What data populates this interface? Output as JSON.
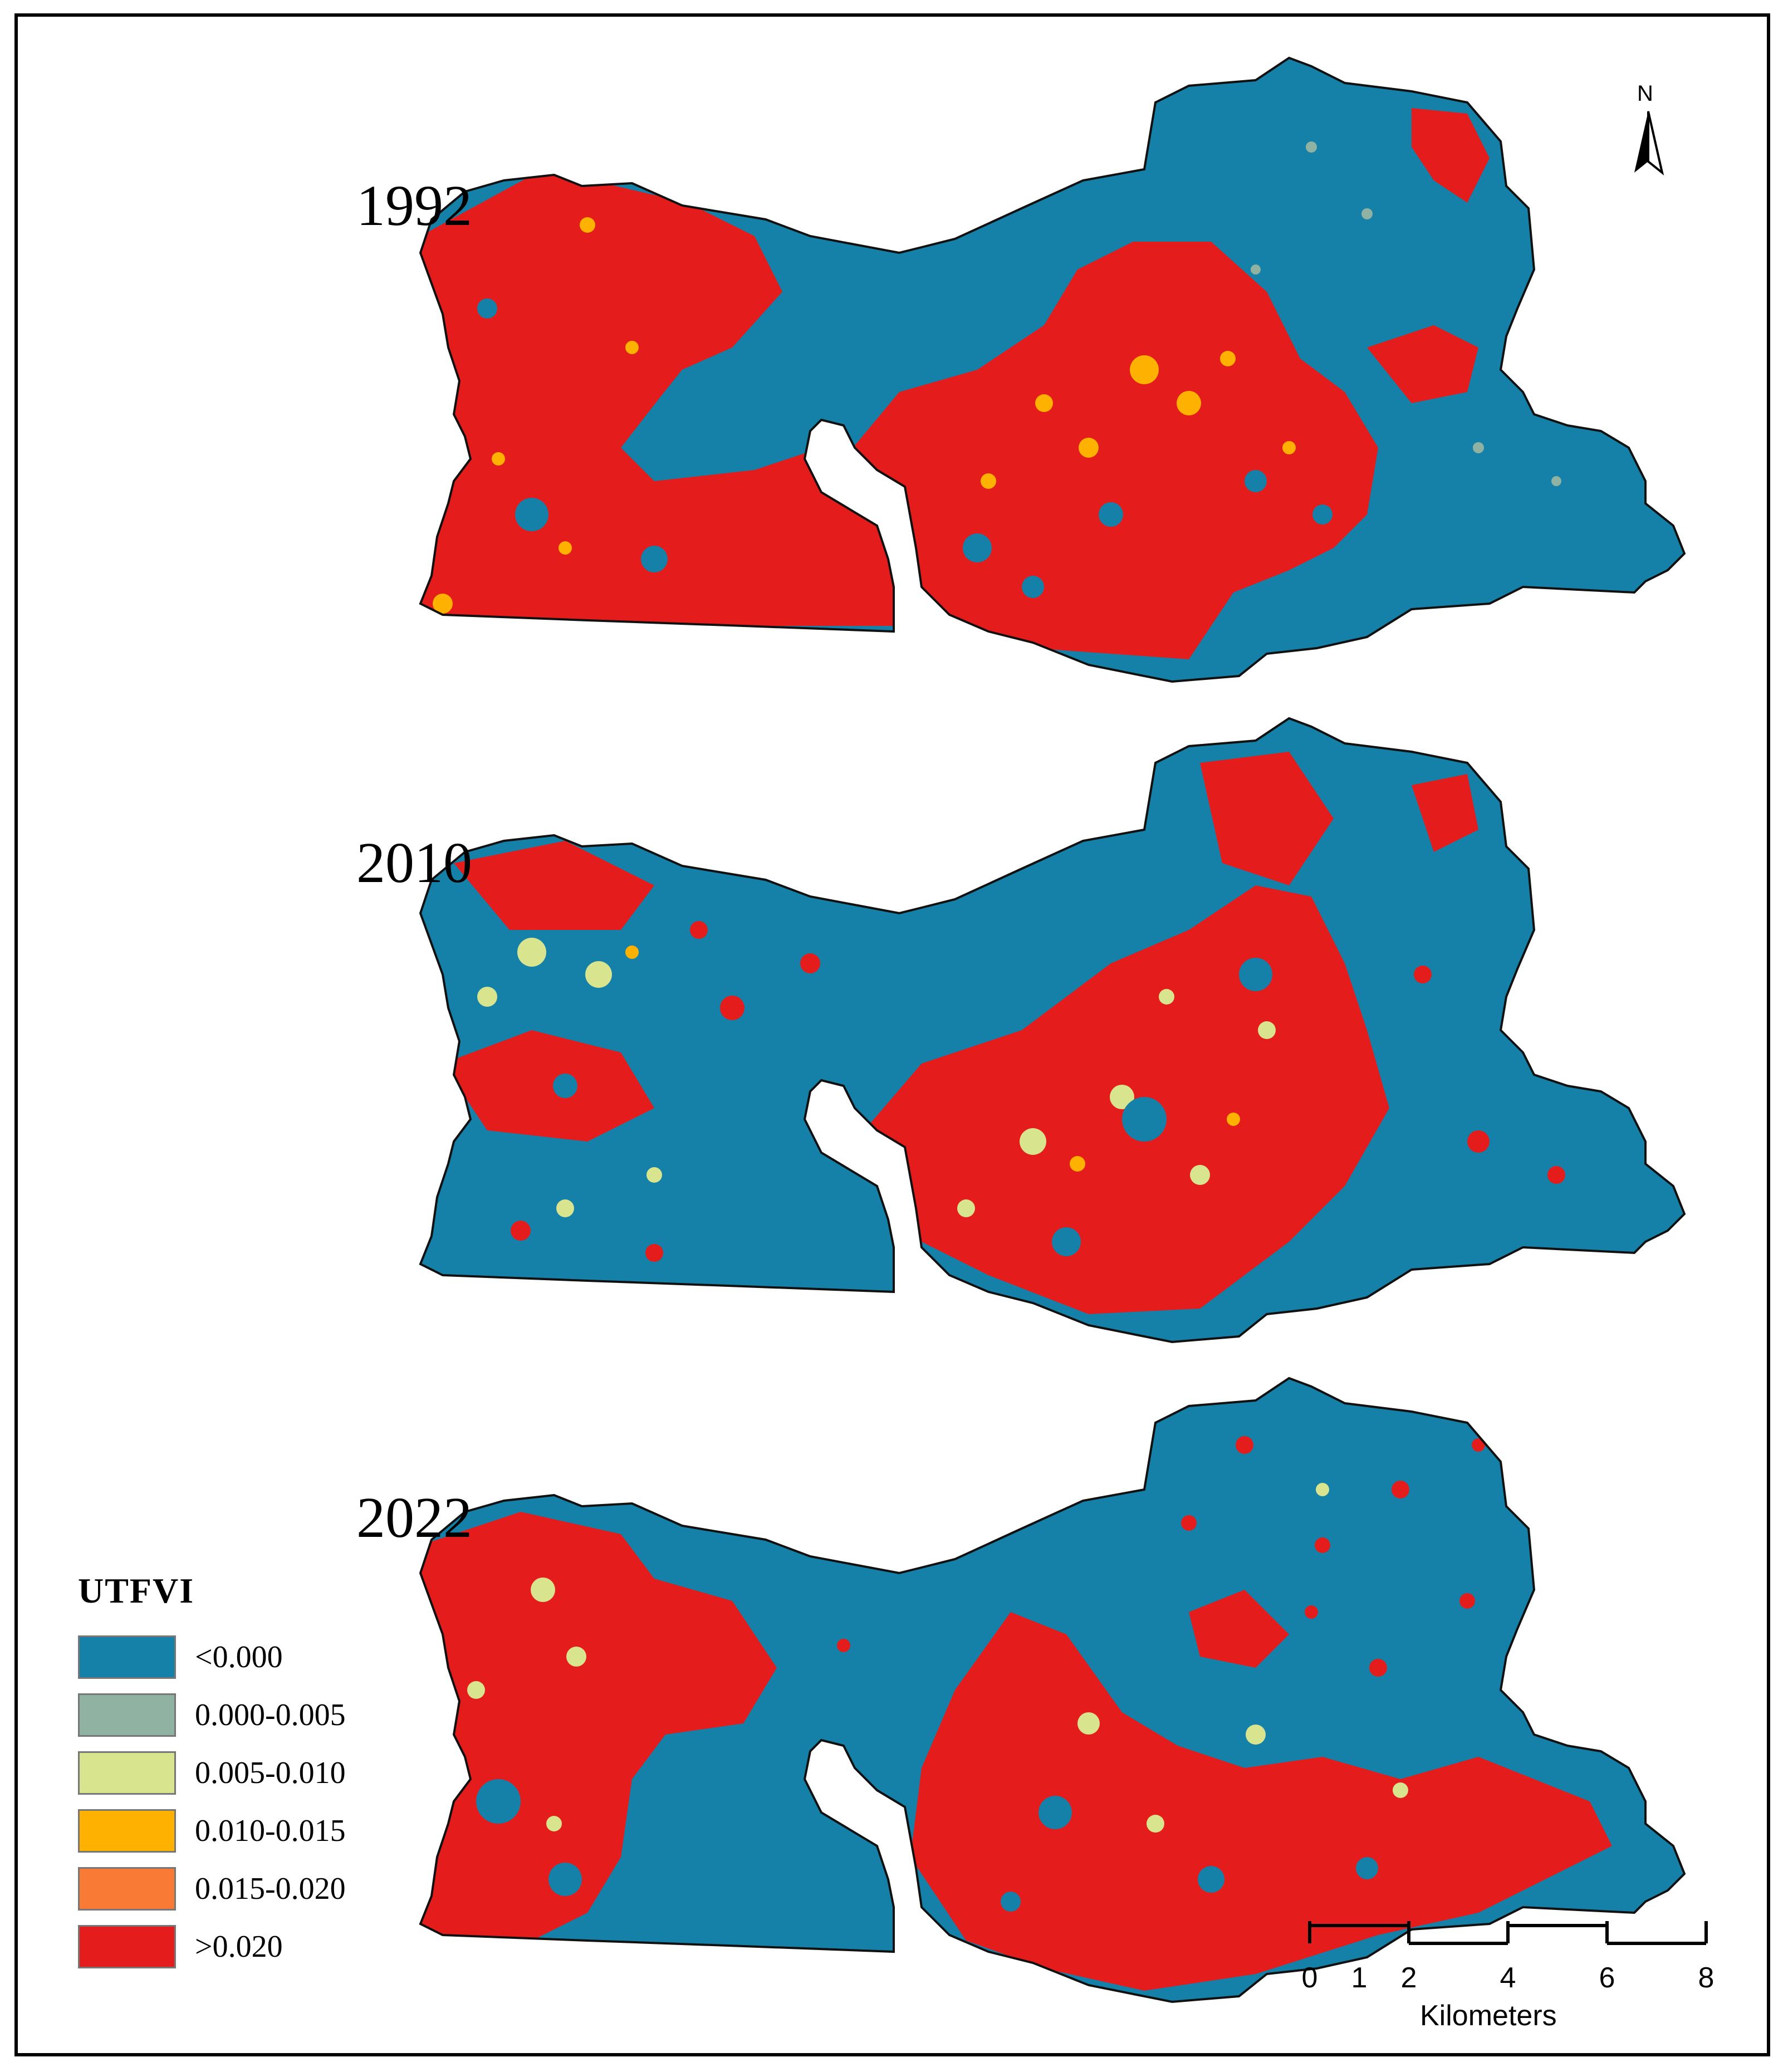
{
  "panels": [
    {
      "year": "1992"
    },
    {
      "year": "2010"
    },
    {
      "year": "2022"
    }
  ],
  "legend": {
    "title": "UTFVI",
    "items": [
      {
        "label": "<0.000",
        "color": "#1580a8"
      },
      {
        "label": "0.000-0.005",
        "color": "#8fb2a3"
      },
      {
        "label": "0.005-0.010",
        "color": "#d9e48e"
      },
      {
        "label": "0.010-0.015",
        "color": "#ffb100"
      },
      {
        "label": "0.015-0.020",
        "color": "#f97a35"
      },
      {
        "label": ">0.020",
        "color": "#e41c1c"
      }
    ]
  },
  "north_arrow": {
    "label": "N"
  },
  "scale_bar": {
    "ticks": [
      "0",
      "1",
      "2",
      "4",
      "6",
      "8"
    ],
    "units": "Kilometers"
  }
}
